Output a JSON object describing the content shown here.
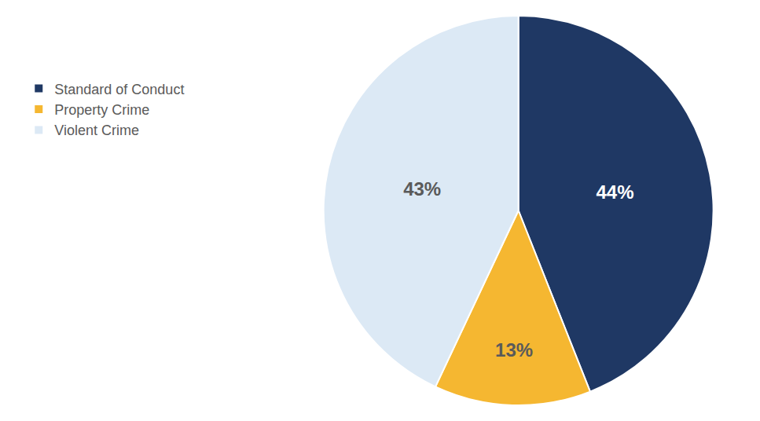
{
  "chart_data": {
    "type": "pie",
    "categories": [
      "Standard of Conduct",
      "Property Crime",
      "Violent Crime"
    ],
    "values": [
      44,
      13,
      43
    ],
    "value_labels": [
      "44%",
      "13%",
      "43%"
    ],
    "colors": [
      "#1f3864",
      "#f5b731",
      "#dce9f5"
    ],
    "data_labels": true,
    "legend": "upper left"
  }
}
